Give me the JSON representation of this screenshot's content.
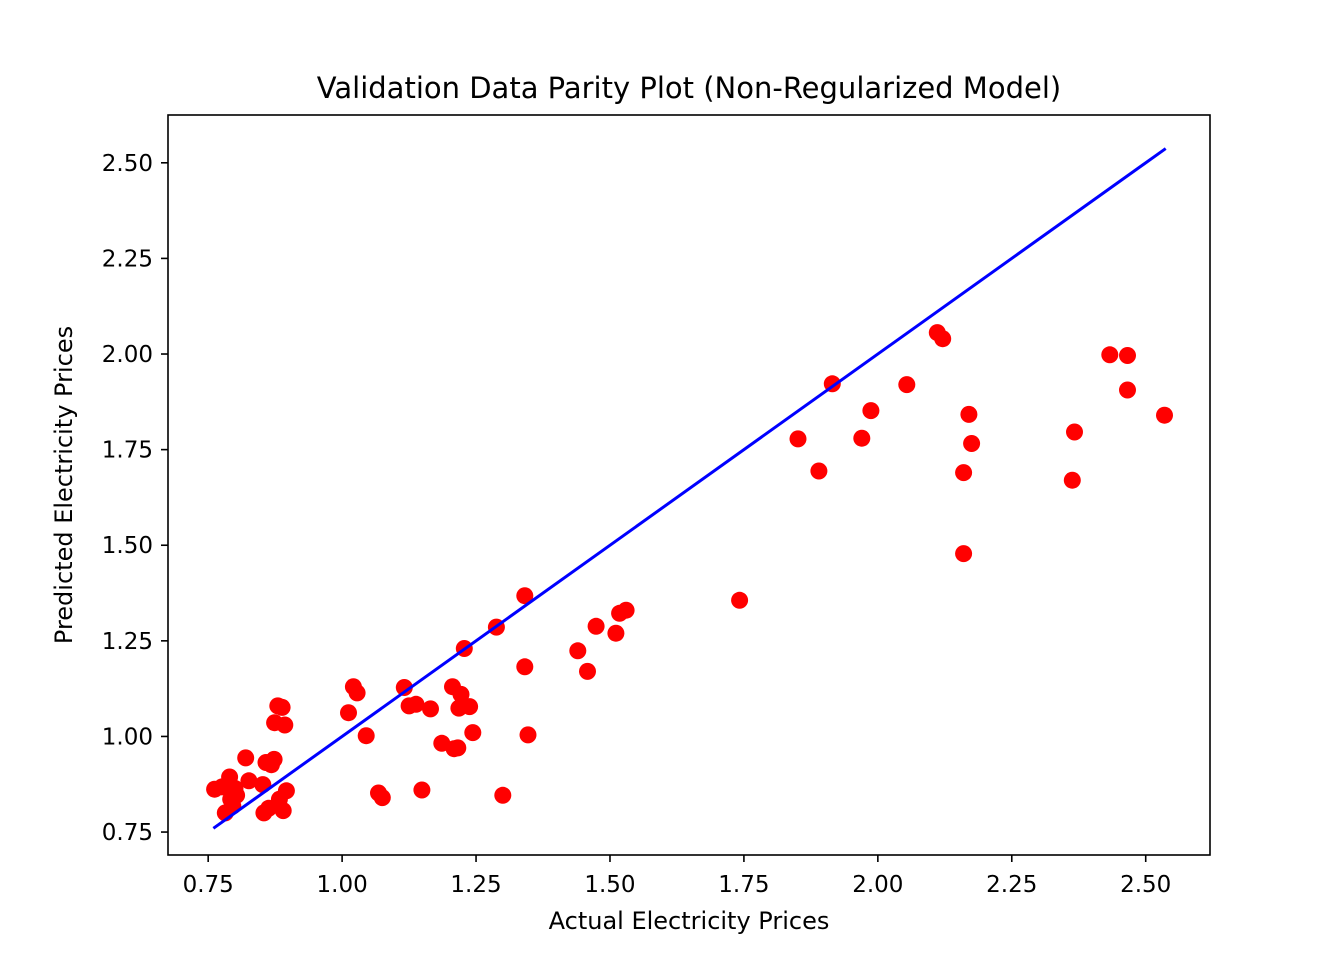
{
  "chart_data": {
    "type": "scatter",
    "title": "Validation Data Parity Plot (Non-Regularized Model)",
    "xlabel": "Actual Electricity Prices",
    "ylabel": "Predicted Electricity Prices",
    "xlim": [
      0.675,
      2.62
    ],
    "ylim": [
      0.69,
      2.625
    ],
    "xticks": [
      0.75,
      1.0,
      1.25,
      1.5,
      1.75,
      2.0,
      2.25,
      2.5
    ],
    "xtick_labels": [
      "0.75",
      "1.00",
      "1.25",
      "1.50",
      "1.75",
      "2.00",
      "2.25",
      "2.50"
    ],
    "yticks": [
      0.75,
      1.0,
      1.25,
      1.5,
      1.75,
      2.0,
      2.25,
      2.5
    ],
    "ytick_labels": [
      "0.75",
      "1.00",
      "1.25",
      "1.50",
      "1.75",
      "2.00",
      "2.25",
      "2.50"
    ],
    "grid": false,
    "colors": {
      "points": "#ff0000",
      "parity_line": "#0000ff"
    },
    "parity_line": {
      "x": [
        0.762,
        2.535
      ],
      "y": [
        0.762,
        2.535
      ]
    },
    "points": [
      {
        "x": 0.762,
        "y": 0.862
      },
      {
        "x": 0.776,
        "y": 0.868
      },
      {
        "x": 0.782,
        "y": 0.8
      },
      {
        "x": 0.79,
        "y": 0.894
      },
      {
        "x": 0.792,
        "y": 0.836
      },
      {
        "x": 0.796,
        "y": 0.818
      },
      {
        "x": 0.8,
        "y": 0.864
      },
      {
        "x": 0.803,
        "y": 0.846
      },
      {
        "x": 0.82,
        "y": 0.944
      },
      {
        "x": 0.826,
        "y": 0.884
      },
      {
        "x": 0.852,
        "y": 0.874
      },
      {
        "x": 0.854,
        "y": 0.8
      },
      {
        "x": 0.858,
        "y": 0.932
      },
      {
        "x": 0.863,
        "y": 0.812
      },
      {
        "x": 0.868,
        "y": 0.926
      },
      {
        "x": 0.873,
        "y": 0.94
      },
      {
        "x": 0.874,
        "y": 1.036
      },
      {
        "x": 0.88,
        "y": 1.08
      },
      {
        "x": 0.883,
        "y": 0.836
      },
      {
        "x": 0.888,
        "y": 1.076
      },
      {
        "x": 0.89,
        "y": 0.806
      },
      {
        "x": 0.893,
        "y": 1.03
      },
      {
        "x": 0.896,
        "y": 0.858
      },
      {
        "x": 1.012,
        "y": 1.062
      },
      {
        "x": 1.021,
        "y": 1.13
      },
      {
        "x": 1.028,
        "y": 1.114
      },
      {
        "x": 1.045,
        "y": 1.002
      },
      {
        "x": 1.068,
        "y": 0.852
      },
      {
        "x": 1.075,
        "y": 0.84
      },
      {
        "x": 1.116,
        "y": 1.128
      },
      {
        "x": 1.125,
        "y": 1.08
      },
      {
        "x": 1.138,
        "y": 1.084
      },
      {
        "x": 1.149,
        "y": 0.86
      },
      {
        "x": 1.165,
        "y": 1.072
      },
      {
        "x": 1.186,
        "y": 0.982
      },
      {
        "x": 1.206,
        "y": 1.13
      },
      {
        "x": 1.209,
        "y": 0.968
      },
      {
        "x": 1.216,
        "y": 0.97
      },
      {
        "x": 1.218,
        "y": 1.074
      },
      {
        "x": 1.222,
        "y": 1.11
      },
      {
        "x": 1.228,
        "y": 1.23
      },
      {
        "x": 1.238,
        "y": 1.078
      },
      {
        "x": 1.244,
        "y": 1.01
      },
      {
        "x": 1.288,
        "y": 1.286
      },
      {
        "x": 1.3,
        "y": 0.846
      },
      {
        "x": 1.341,
        "y": 1.368
      },
      {
        "x": 1.341,
        "y": 1.182
      },
      {
        "x": 1.347,
        "y": 1.004
      },
      {
        "x": 1.44,
        "y": 1.224
      },
      {
        "x": 1.458,
        "y": 1.17
      },
      {
        "x": 1.474,
        "y": 1.288
      },
      {
        "x": 1.511,
        "y": 1.27
      },
      {
        "x": 1.518,
        "y": 1.322
      },
      {
        "x": 1.53,
        "y": 1.33
      },
      {
        "x": 1.742,
        "y": 1.356
      },
      {
        "x": 1.851,
        "y": 1.778
      },
      {
        "x": 1.89,
        "y": 1.694
      },
      {
        "x": 1.915,
        "y": 1.922
      },
      {
        "x": 1.97,
        "y": 1.78
      },
      {
        "x": 1.987,
        "y": 1.852
      },
      {
        "x": 2.054,
        "y": 1.92
      },
      {
        "x": 2.111,
        "y": 2.056
      },
      {
        "x": 2.121,
        "y": 2.04
      },
      {
        "x": 2.16,
        "y": 1.69
      },
      {
        "x": 2.16,
        "y": 1.478
      },
      {
        "x": 2.17,
        "y": 1.842
      },
      {
        "x": 2.175,
        "y": 1.766
      },
      {
        "x": 2.363,
        "y": 1.67
      },
      {
        "x": 2.367,
        "y": 1.796
      },
      {
        "x": 2.433,
        "y": 1.998
      },
      {
        "x": 2.466,
        "y": 1.996
      },
      {
        "x": 2.466,
        "y": 1.906
      },
      {
        "x": 2.535,
        "y": 1.84
      }
    ]
  }
}
